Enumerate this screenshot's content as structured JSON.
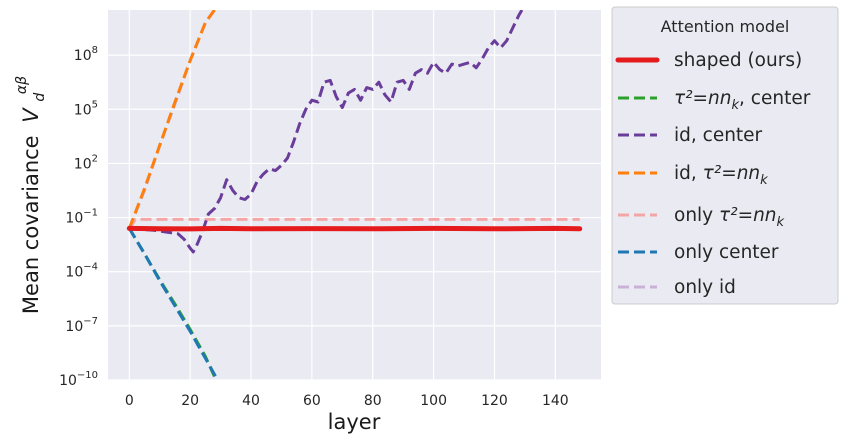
{
  "chart_data": {
    "type": "line",
    "title": "",
    "xlabel": "layer",
    "ylabel": "Mean covariance",
    "ylabel_math": "V",
    "ylabel_math_sub": "d",
    "ylabel_math_sup": "αβ",
    "yscale": "log",
    "xlim": [
      -7,
      155
    ],
    "ylim_log10": [
      -10,
      10.5
    ],
    "x_ticks": [
      0,
      20,
      40,
      60,
      80,
      100,
      120,
      140
    ],
    "x_tick_labels": [
      "0",
      "20",
      "40",
      "60",
      "80",
      "100",
      "120",
      "140"
    ],
    "y_ticks_log10": [
      -10,
      -7,
      -4,
      -1,
      2,
      5,
      8
    ],
    "y_tick_labels": [
      "10",
      "10",
      "10",
      "10",
      "10",
      "10",
      "10"
    ],
    "y_tick_exponents": [
      "−10",
      "−7",
      "−4",
      "−1",
      "2",
      "5",
      "8"
    ],
    "grid": true,
    "legend": {
      "title": "Attention model",
      "position": "outside-right",
      "entries": [
        {
          "pre": "shaped (ours)",
          "math": "",
          "post": ""
        },
        {
          "pre": "",
          "math": "τ²=nn",
          "sub": "k",
          "post": ", center"
        },
        {
          "pre": "id, center",
          "math": "",
          "post": ""
        },
        {
          "pre": "id, ",
          "math": "τ²=nn",
          "sub": "k",
          "post": ""
        },
        {
          "pre": "only ",
          "math": "τ²=nn",
          "sub": "k",
          "post": ""
        },
        {
          "pre": "only center",
          "math": "",
          "post": ""
        },
        {
          "pre": "only id",
          "math": "",
          "post": ""
        }
      ]
    },
    "series": [
      {
        "name": "shaped (ours)",
        "color": "#e41a1c",
        "dash": "solid",
        "width": 5,
        "x": [
          0,
          10,
          20,
          30,
          40,
          60,
          80,
          100,
          120,
          140,
          148
        ],
        "log10_y": [
          -1.6,
          -1.62,
          -1.63,
          -1.6,
          -1.62,
          -1.61,
          -1.62,
          -1.6,
          -1.62,
          -1.6,
          -1.62
        ]
      },
      {
        "name": "τ²=nn_k, center",
        "color": "#2ca02c",
        "dash": "dashed",
        "width": 3,
        "x": [
          0,
          5,
          10,
          15,
          20,
          25,
          28.5
        ],
        "log10_y": [
          -1.6,
          -3.0,
          -4.45,
          -5.8,
          -7.2,
          -8.7,
          -10
        ]
      },
      {
        "name": "id, center",
        "color": "#6a3d9a",
        "dash": "dashed",
        "width": 3,
        "x": [
          0,
          4,
          8,
          12,
          16,
          18,
          20,
          21,
          22,
          24,
          26,
          28,
          30,
          32,
          34,
          36,
          38,
          40,
          42,
          44,
          46,
          48,
          50,
          52,
          54,
          56,
          58,
          60,
          62,
          64,
          66,
          68,
          70,
          72,
          74,
          76,
          78,
          80,
          82,
          84,
          86,
          88,
          90,
          92,
          94,
          96,
          98,
          100,
          102,
          104,
          106,
          108,
          110,
          112,
          114,
          116,
          118,
          120,
          122,
          124,
          126,
          128,
          129
        ],
        "log10_y": [
          -1.6,
          -1.65,
          -1.7,
          -1.8,
          -1.9,
          -2.2,
          -2.7,
          -2.9,
          -2.6,
          -1.8,
          -0.8,
          -0.5,
          0.1,
          1.1,
          0.5,
          0.1,
          0.0,
          0.3,
          1.0,
          1.4,
          1.7,
          1.6,
          1.9,
          2.3,
          3.2,
          4.2,
          5.0,
          5.5,
          5.4,
          6.5,
          6.6,
          5.7,
          5.1,
          5.9,
          6.1,
          5.5,
          6.2,
          6.1,
          6.5,
          5.8,
          5.4,
          6.5,
          6.6,
          6.1,
          7.0,
          7.2,
          7.0,
          7.6,
          7.2,
          7.0,
          7.5,
          7.4,
          7.5,
          7.6,
          7.3,
          7.8,
          8.4,
          8.8,
          8.4,
          8.8,
          9.5,
          10.2,
          10.5
        ]
      },
      {
        "name": "id, τ²=nn_k",
        "color": "#ff7f0e",
        "dash": "dashed",
        "width": 3,
        "x": [
          0,
          5,
          10,
          15,
          20,
          25,
          28
        ],
        "log10_y": [
          -1.6,
          0.6,
          3.0,
          5.4,
          7.7,
          9.8,
          10.5
        ]
      },
      {
        "name": "only τ²=nn_k",
        "color": "#f4a6a6",
        "dash": "dashed",
        "width": 3,
        "x": [
          0,
          2,
          148
        ],
        "log10_y": [
          -1.6,
          -1.1,
          -1.1
        ]
      },
      {
        "name": "only center",
        "color": "#1f78b4",
        "dash": "dashed",
        "width": 3,
        "x": [
          0,
          5,
          10,
          15,
          20,
          25,
          29
        ],
        "log10_y": [
          -1.6,
          -3.0,
          -4.5,
          -5.9,
          -7.3,
          -8.8,
          -10
        ]
      },
      {
        "name": "only id",
        "color": "#cab2d6",
        "dash": "dashed",
        "width": 3,
        "x": [
          0,
          5,
          10,
          15,
          20,
          25,
          28
        ],
        "log10_y": [
          -1.6,
          0.5,
          3.0,
          5.3,
          7.7,
          9.8,
          10.5
        ]
      }
    ]
  }
}
